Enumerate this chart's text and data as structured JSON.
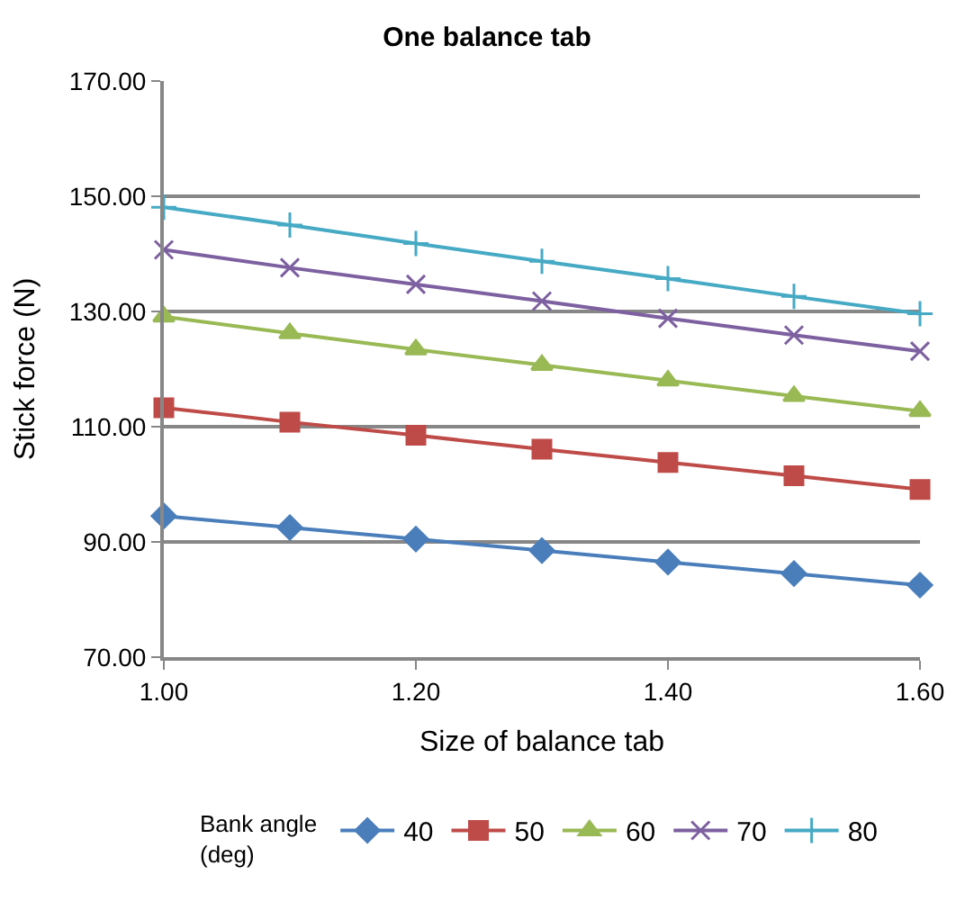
{
  "chart_data": {
    "type": "line",
    "title": "One balance tab",
    "xlabel": "Size of balance tab",
    "ylabel": "Stick force (N)",
    "legend_title": "Bank angle\n(deg)",
    "x": [
      1.0,
      1.1,
      1.2,
      1.3,
      1.4,
      1.5,
      1.6
    ],
    "series": [
      {
        "name": "40",
        "color": "#4a7ebb",
        "marker": "diamond",
        "values": [
          94.5,
          92.5,
          90.5,
          88.5,
          86.5,
          84.5,
          82.5
        ]
      },
      {
        "name": "50",
        "color": "#be4b48",
        "marker": "square",
        "values": [
          113.3,
          110.8,
          108.5,
          106.1,
          103.8,
          101.5,
          99.1
        ]
      },
      {
        "name": "60",
        "color": "#98b954",
        "marker": "triangle",
        "values": [
          129.1,
          126.2,
          123.4,
          120.7,
          118.0,
          115.3,
          112.7
        ]
      },
      {
        "name": "70",
        "color": "#7d60a0",
        "marker": "cross",
        "values": [
          140.7,
          137.6,
          134.7,
          131.8,
          128.8,
          125.9,
          123.1
        ]
      },
      {
        "name": "80",
        "color": "#46aac5",
        "marker": "plus",
        "values": [
          148.1,
          145.0,
          141.8,
          138.7,
          135.7,
          132.6,
          129.6
        ]
      }
    ],
    "xlim": [
      1.0,
      1.6
    ],
    "xticks": [
      {
        "value": 1.0,
        "label": "1.00"
      },
      {
        "value": 1.2,
        "label": "1.20"
      },
      {
        "value": 1.4,
        "label": "1.40"
      },
      {
        "value": 1.6,
        "label": "1.60"
      }
    ],
    "ylim": [
      70,
      170
    ],
    "yticks": [
      {
        "value": 70,
        "label": "70.00"
      },
      {
        "value": 90,
        "label": "90.00"
      },
      {
        "value": 110,
        "label": "110.00"
      },
      {
        "value": 130,
        "label": "130.00"
      },
      {
        "value": 150,
        "label": "150.00"
      },
      {
        "value": 170,
        "label": "170.00"
      }
    ],
    "grid": "y",
    "legend": "bottom",
    "line_style": "solid"
  }
}
